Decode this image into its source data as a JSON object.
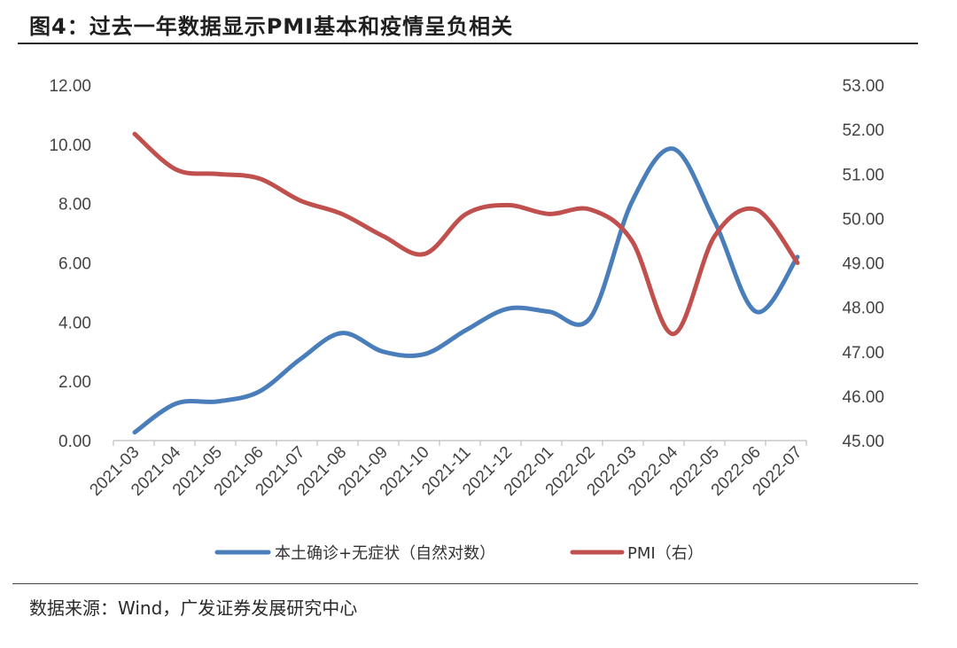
{
  "figure": {
    "title": "图4：过去一年数据显示PMI基本和疫情呈负相关",
    "source": "数据来源：Wind，广发证券发展研究中心"
  },
  "chart_data": {
    "type": "line",
    "categories": [
      "2021-03",
      "2021-04",
      "2021-05",
      "2021-06",
      "2021-07",
      "2021-08",
      "2021-09",
      "2021-10",
      "2021-11",
      "2021-12",
      "2022-01",
      "2022-02",
      "2022-03",
      "2022-04",
      "2022-05",
      "2022-06",
      "2022-07"
    ],
    "series": [
      {
        "name": "本土确诊+无症状（自然对数）",
        "axis": "left",
        "color": "#4a7ebb",
        "values": [
          0.28,
          1.25,
          1.32,
          1.65,
          2.75,
          3.63,
          3.0,
          2.92,
          3.73,
          4.45,
          4.35,
          4.15,
          8.05,
          9.85,
          7.4,
          4.35,
          6.2
        ]
      },
      {
        "name": "PMI（右）",
        "axis": "right",
        "color": "#c0504d",
        "values": [
          51.9,
          51.1,
          51.0,
          50.9,
          50.4,
          50.1,
          49.6,
          49.2,
          50.1,
          50.3,
          50.1,
          50.2,
          49.5,
          47.4,
          49.6,
          50.2,
          49.0
        ]
      }
    ],
    "left_axis": {
      "min": 0,
      "max": 12,
      "step": 2,
      "tick_labels": [
        "0.00",
        "2.00",
        "4.00",
        "6.00",
        "8.00",
        "10.00",
        "12.00"
      ]
    },
    "right_axis": {
      "min": 45,
      "max": 53,
      "step": 1,
      "tick_labels": [
        "45.00",
        "46.00",
        "47.00",
        "48.00",
        "49.00",
        "50.00",
        "51.00",
        "52.00",
        "53.00"
      ]
    },
    "legend": {
      "position": "bottom",
      "entries": [
        "本土确诊+无症状（自然对数）",
        "PMI（右）"
      ]
    },
    "grid": false
  }
}
